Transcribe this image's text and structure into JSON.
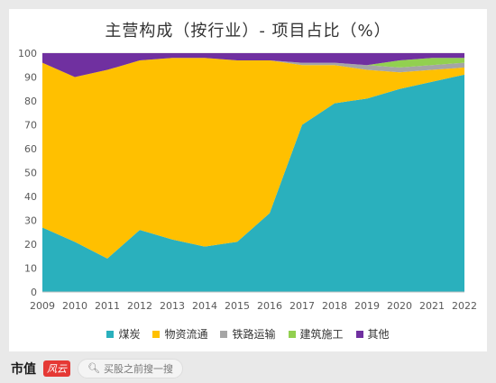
{
  "chart_data": {
    "type": "area",
    "stacked": true,
    "title": "主营构成（按行业）- 项目占比（%）",
    "x": [
      2009,
      2010,
      2011,
      2012,
      2013,
      2014,
      2015,
      2016,
      2017,
      2018,
      2019,
      2020,
      2021,
      2022
    ],
    "ylim": [
      0,
      100
    ],
    "yticks": [
      0,
      10,
      20,
      30,
      40,
      50,
      60,
      70,
      80,
      90,
      100
    ],
    "grid": true,
    "legend_position": "bottom",
    "series": [
      {
        "name": "煤炭",
        "color": "#2ab0bd",
        "values": [
          27,
          21,
          14,
          26,
          22,
          19,
          21,
          33,
          70,
          79,
          81,
          85,
          88,
          91
        ]
      },
      {
        "name": "物资流通",
        "color": "#ffc000",
        "values": [
          69,
          69,
          79,
          71,
          76,
          79,
          76,
          64,
          25,
          16,
          12,
          7,
          5,
          3
        ]
      },
      {
        "name": "铁路运输",
        "color": "#a5a5a5",
        "values": [
          0,
          0,
          0,
          0,
          0,
          0,
          0,
          0,
          1,
          1,
          2,
          2,
          2,
          2
        ]
      },
      {
        "name": "建筑施工",
        "color": "#92d050",
        "values": [
          0,
          0,
          0,
          0,
          0,
          0,
          0,
          0,
          0,
          0,
          0,
          3,
          3,
          2
        ]
      },
      {
        "name": "其他",
        "color": "#7030a0",
        "values": [
          4,
          10,
          7,
          3,
          2,
          2,
          3,
          3,
          4,
          4,
          5,
          3,
          2,
          2
        ]
      }
    ]
  },
  "footer": {
    "brand_text": "市值",
    "brand_badge": "风云",
    "search_text": "买股之前搜一搜"
  }
}
